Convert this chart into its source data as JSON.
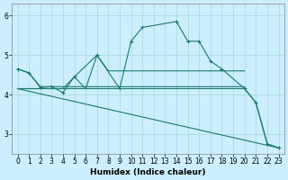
{
  "xlabel": "Humidex (Indice chaleur)",
  "background_color": "#cceeff",
  "grid_color": "#aadddd",
  "line_color": "#1a7a6e",
  "xlim": [
    -0.5,
    23.5
  ],
  "ylim": [
    2.5,
    6.3
  ],
  "yticks": [
    3,
    4,
    5,
    6
  ],
  "xticks": [
    0,
    1,
    2,
    3,
    4,
    5,
    6,
    7,
    8,
    9,
    10,
    11,
    12,
    13,
    14,
    15,
    16,
    17,
    18,
    19,
    20,
    21,
    22,
    23
  ],
  "series": [
    {
      "x": [
        0,
        1,
        2,
        3,
        4,
        5,
        6,
        7,
        8,
        9,
        10,
        11,
        12,
        13,
        14,
        15,
        16,
        17,
        18,
        19,
        20
      ],
      "y": [
        4.65,
        4.55,
        4.2,
        4.2,
        4.2,
        4.2,
        4.2,
        4.2,
        4.2,
        4.2,
        4.2,
        4.2,
        4.2,
        4.2,
        4.2,
        4.2,
        4.2,
        4.2,
        4.2,
        4.2,
        4.2
      ],
      "has_markers": false
    },
    {
      "x": [
        0,
        1,
        2,
        3,
        4,
        5,
        6,
        7,
        8,
        9,
        10,
        11,
        12,
        13,
        14,
        15,
        16,
        17,
        18,
        19,
        20,
        21,
        22,
        23
      ],
      "y": [
        4.15,
        4.15,
        4.15,
        4.15,
        4.15,
        4.15,
        4.15,
        4.15,
        4.15,
        4.15,
        4.15,
        4.15,
        4.15,
        4.15,
        4.15,
        4.15,
        4.15,
        4.15,
        4.15,
        4.15,
        4.15,
        3.8,
        2.75,
        2.65
      ],
      "has_markers": false
    },
    {
      "x": [
        0,
        1,
        2,
        3,
        4,
        5,
        6,
        7,
        8,
        9,
        10,
        11,
        12,
        13,
        14,
        15,
        16,
        17,
        18,
        19,
        20
      ],
      "y": [
        4.15,
        4.15,
        4.15,
        4.15,
        4.15,
        4.45,
        4.15,
        5.0,
        4.6,
        4.6,
        4.6,
        4.6,
        4.6,
        4.6,
        4.6,
        4.6,
        4.6,
        4.6,
        4.6,
        4.6,
        4.6
      ],
      "has_markers": false
    },
    {
      "x": [
        0,
        23
      ],
      "y": [
        4.15,
        2.65
      ],
      "has_markers": false
    },
    {
      "x": [
        0,
        1,
        2,
        3,
        4,
        5,
        7,
        9,
        10,
        11,
        14,
        15,
        16,
        17,
        18,
        20,
        21,
        22,
        23
      ],
      "y": [
        4.65,
        4.55,
        4.18,
        4.2,
        4.05,
        4.45,
        5.0,
        4.15,
        5.35,
        5.7,
        5.85,
        5.35,
        5.35,
        4.85,
        4.65,
        4.15,
        3.8,
        2.75,
        2.65
      ],
      "has_markers": true
    }
  ]
}
